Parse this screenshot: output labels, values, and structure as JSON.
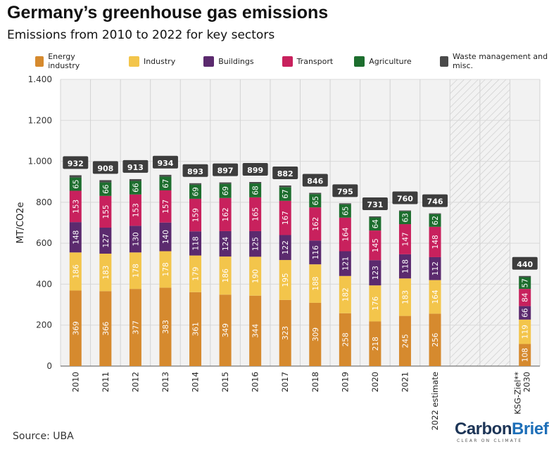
{
  "title": "Germany’s greenhouse gas emissions",
  "subtitle": "Emissions from 2010 to 2022 for key sectors",
  "source": "Source: UBA",
  "logo": {
    "part1": "Carbon",
    "part2": "Brief",
    "tagline": "CLEAR ON CLIMATE"
  },
  "colors": {
    "energy": "#d68a2e",
    "industry": "#f3c54b",
    "buildings": "#5b2a6e",
    "transport": "#c8215d",
    "agriculture": "#1d6e2e",
    "waste": "#4a4a4a",
    "grid": "#d8d8d8",
    "plot_bg": "#f2f2f2",
    "label_bg": "#3d3d3d"
  },
  "chart_data": {
    "type": "bar",
    "stacked": true,
    "title": "Germany’s greenhouse gas emissions",
    "subtitle": "Emissions from 2010 to 2022 for key sectors",
    "ylabel": "MT/CO2e",
    "xlabel": "",
    "ylim": [
      0,
      1400
    ],
    "yticks": [
      0,
      200,
      400,
      600,
      800,
      1000,
      1200,
      1400
    ],
    "ytick_labels": [
      "0",
      "200",
      "400",
      "600",
      "800",
      "1.000",
      "1.200",
      "1.400"
    ],
    "categories": [
      "2010",
      "2011",
      "2012",
      "2013",
      "2014",
      "2015",
      "2016",
      "2017",
      "2018",
      "2019",
      "2020",
      "2021",
      "2022 estimate",
      "",
      "",
      "KSG-Ziel** 2030"
    ],
    "series": [
      {
        "name": "Energy industry",
        "key": "energy",
        "values": [
          369,
          366,
          377,
          383,
          361,
          349,
          344,
          323,
          309,
          258,
          218,
          245,
          256,
          null,
          null,
          108
        ]
      },
      {
        "name": "Industry",
        "key": "industry",
        "values": [
          186,
          183,
          178,
          178,
          179,
          186,
          190,
          195,
          188,
          182,
          176,
          183,
          164,
          null,
          null,
          119
        ]
      },
      {
        "name": "Buildings",
        "key": "buildings",
        "values": [
          148,
          127,
          130,
          140,
          118,
          124,
          125,
          122,
          116,
          121,
          123,
          118,
          112,
          null,
          null,
          66
        ]
      },
      {
        "name": "Transport",
        "key": "transport",
        "values": [
          153,
          155,
          153,
          157,
          159,
          162,
          165,
          167,
          162,
          164,
          145,
          147,
          148,
          null,
          null,
          84
        ]
      },
      {
        "name": "Agriculture",
        "key": "agriculture",
        "values": [
          65,
          66,
          66,
          67,
          69,
          69,
          68,
          67,
          65,
          65,
          64,
          63,
          62,
          null,
          null,
          57
        ]
      },
      {
        "name": "Waste management and misc.",
        "key": "waste",
        "values": [
          11,
          11,
          9,
          9,
          7,
          7,
          7,
          8,
          6,
          5,
          5,
          4,
          4,
          null,
          null,
          6
        ]
      }
    ],
    "totals": [
      "932",
      "908",
      "913",
      "934",
      "893",
      "897",
      "899",
      "882",
      "846",
      "795",
      "731",
      "760",
      "746",
      "",
      "",
      "440"
    ],
    "legend_position": "top",
    "grid": true
  }
}
